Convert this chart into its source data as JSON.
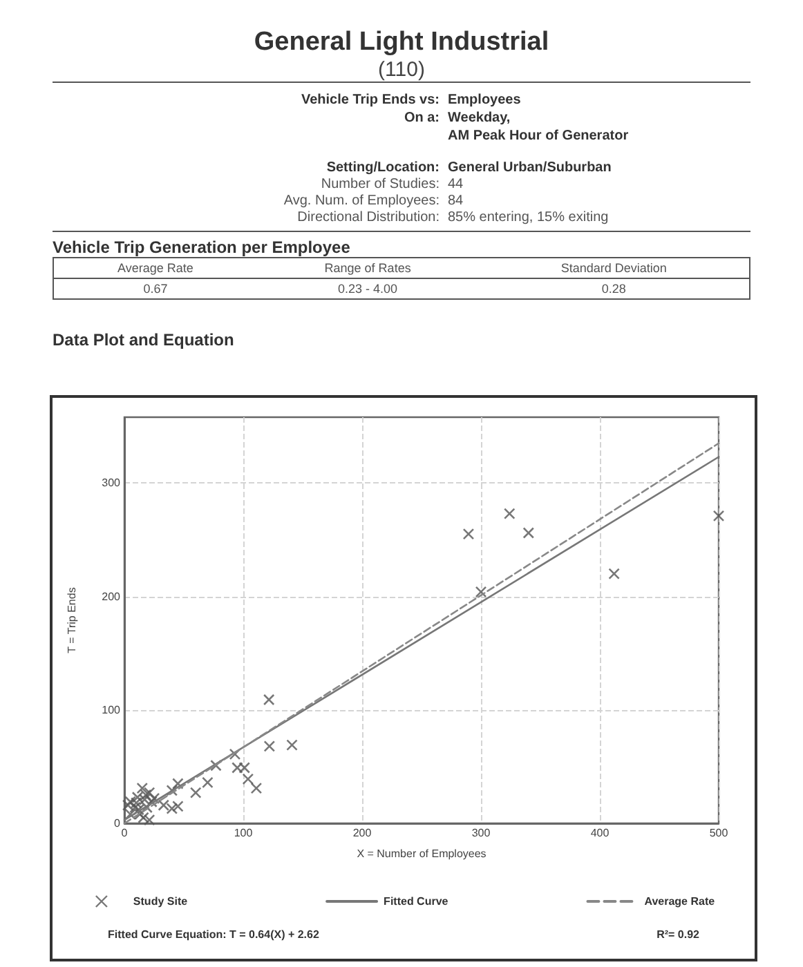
{
  "chart_data": {
    "type": "scatter",
    "title": "General Light Industrial",
    "subtitle": "(110)",
    "xlabel": "X = Number of Employees",
    "ylabel": "T = Trip Ends",
    "annotations": [
      "Vehicle Trip Ends vs:",
      "Employees",
      "On a:",
      "Weekday,",
      "AM Peak Hour of Generator",
      "Setting/Location:",
      "General Urban/Suburban",
      "Number of Studies:",
      "44",
      "Avg. Num. of Employees:",
      "84",
      "Directional Distribution:",
      "85% entering, 15% exiting",
      "Vehicle Trip Generation per Employee",
      "Average Rate",
      "Range of Rates",
      "Standard Deviation",
      "0.67",
      "0.23 - 4.00",
      "0.28",
      "Data Plot and Equation",
      "Fitted Curve Equation: T = 0.64(X) + 2.62",
      "R²= 0.92"
    ],
    "xlim": [
      0,
      500
    ],
    "xticks": [
      0,
      100,
      200,
      300,
      400,
      500
    ],
    "ylim": [
      0,
      358
    ],
    "yticks": [
      0,
      100,
      200,
      300
    ],
    "grid": true,
    "legend": "bottom",
    "series": [
      {
        "name": "Study Site",
        "marker": "cross",
        "color": "#555555",
        "x": [
          121.6,
          122,
          141,
          93,
          95,
          101,
          104,
          111,
          77,
          70,
          60,
          45,
          40,
          45,
          40,
          33,
          15,
          21,
          23,
          21,
          9,
          5,
          13,
          3,
          17,
          19,
          11,
          5,
          12,
          16,
          10,
          18,
          25,
          289.5,
          324,
          340,
          300,
          412,
          500
        ],
        "values": [
          109,
          68,
          69,
          61,
          49,
          49,
          39,
          31,
          51,
          36,
          27,
          35,
          29,
          15,
          13,
          16,
          31,
          27,
          19,
          3,
          14,
          8,
          8,
          16,
          21,
          14,
          23,
          19,
          12,
          5,
          18,
          25,
          22,
          255,
          273,
          256,
          204,
          220,
          271
        ]
      },
      {
        "name": "Fitted Curve",
        "type": "line",
        "color": "#777777",
        "line_style": "solid",
        "marker": "none",
        "x": [
          0,
          500
        ],
        "values": [
          3,
          323
        ]
      },
      {
        "name": "Average Rate",
        "type": "line",
        "color": "#888888",
        "line_style": "dashed",
        "marker": "none",
        "x": [
          0,
          500
        ],
        "values": [
          0,
          335
        ]
      }
    ]
  }
}
